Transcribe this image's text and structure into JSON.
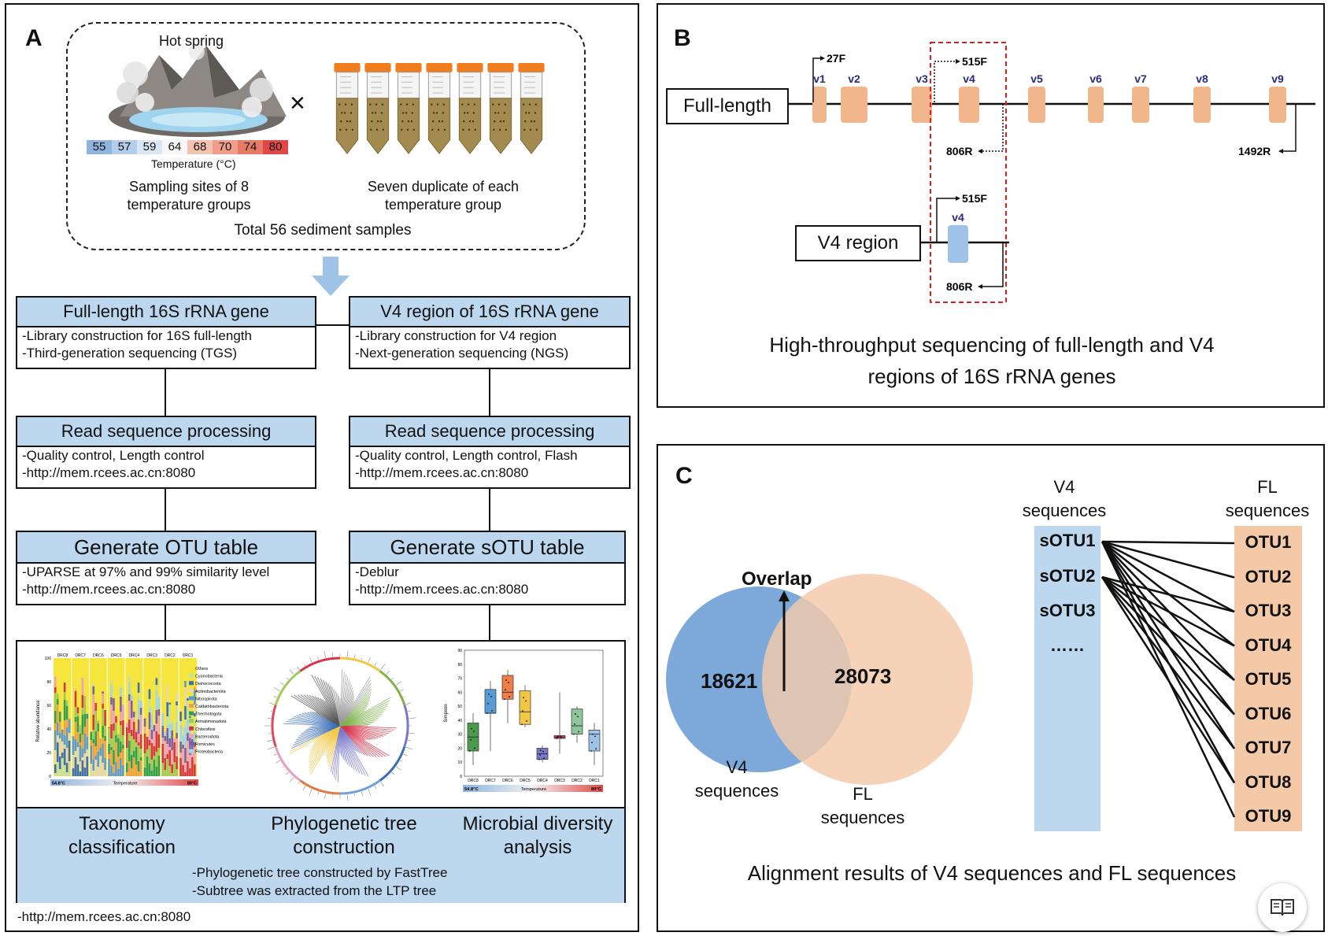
{
  "panel_a": {
    "label": "A",
    "hot_spring_label": "Hot spring",
    "times_symbol": "×",
    "temperature_scale": [
      {
        "value": "55",
        "color": "#8fb4de"
      },
      {
        "value": "57",
        "color": "#b3cdea"
      },
      {
        "value": "59",
        "color": "#dbe6f4"
      },
      {
        "value": "64",
        "color": "#f7f7f7"
      },
      {
        "value": "68",
        "color": "#f4c2b0"
      },
      {
        "value": "70",
        "color": "#ee9e8a"
      },
      {
        "value": "74",
        "color": "#e87a68"
      },
      {
        "value": "80",
        "color": "#e04848"
      }
    ],
    "temperature_caption": "Temperature (°C)",
    "sampling_sites_line1": "Sampling sites of 8",
    "sampling_sites_line2": "temperature groups",
    "duplicates_line1": "Seven duplicate of each",
    "duplicates_line2": "temperature group",
    "total_samples": "Total 56 sediment samples",
    "left_column": [
      {
        "title": "Full-length 16S rRNA gene",
        "lines": [
          "-Library construction for 16S full-length",
          "-Third-generation sequencing (TGS)"
        ]
      },
      {
        "title": "Read sequence processing",
        "lines": [
          "-Quality control, Length control",
          "-http://mem.rcees.ac.cn:8080"
        ]
      },
      {
        "title": "Generate OTU table",
        "lines": [
          "-UPARSE at 97% and 99% similarity level",
          "-http://mem.rcees.ac.cn:8080"
        ]
      }
    ],
    "right_column": [
      {
        "title": "V4 region of 16S rRNA gene",
        "lines": [
          "-Library construction for V4 region",
          "-Next-generation sequencing (NGS)"
        ]
      },
      {
        "title": "Read sequence processing",
        "lines": [
          "-Quality control, Length control, Flash",
          "-http://mem.rcees.ac.cn:8080"
        ]
      },
      {
        "title": "Generate sOTU table",
        "lines": [
          "-Deblur",
          "-http://mem.rcees.ac.cn:8080"
        ]
      }
    ],
    "analysis": {
      "taxonomy_line1": "Taxonomy",
      "taxonomy_line2": "classification",
      "phylo_line1": "Phylogenetic tree",
      "phylo_line2": "construction",
      "diversity_line1": "Microbial diversity",
      "diversity_line2": "analysis",
      "note_line1": "-Phylogenetic tree constructed by FastTree",
      "note_line2": "-Subtree was extracted from the LTP tree",
      "footer_url": "-http://mem.rcees.ac.cn:8080"
    },
    "bar_thumbnail": {
      "groups": [
        "DRC8",
        "DRC7",
        "DRC6",
        "DRC5",
        "DRC4",
        "DRC3",
        "DRC2",
        "DRC1"
      ],
      "ylabel": "Relative abundance",
      "yticks": [
        "100",
        "80",
        "60",
        "40",
        "20",
        "0"
      ],
      "legend": [
        {
          "name": "Others",
          "color": "#f5e53c"
        },
        {
          "name": "Cyanobacteria",
          "color": "#c7e1a3"
        },
        {
          "name": "Deinococcota",
          "color": "#3d6fb6"
        },
        {
          "name": "Actinobacteriota",
          "color": "#e7d7b5"
        },
        {
          "name": "Nitrospirota",
          "color": "#5b9bd5"
        },
        {
          "name": "Caldatribacteriota",
          "color": "#f0a048"
        },
        {
          "name": "Thermotogota",
          "color": "#2e9e5b"
        },
        {
          "name": "Armatimonadota",
          "color": "#9fc95e"
        },
        {
          "name": "Chloroflexi",
          "color": "#d6344a"
        },
        {
          "name": "Bacteroidota",
          "color": "#f0a0c0"
        },
        {
          "name": "Firmicutes",
          "color": "#7a5fb0"
        },
        {
          "name": "Proteobacteria",
          "color": "#9fd4ee"
        }
      ],
      "temp_low": "54.8°C",
      "temp_mid": "Temperature",
      "temp_high": "80°C"
    },
    "box_thumbnail": {
      "ylabel": "Simpson",
      "yticks": [
        "90",
        "80",
        "70",
        "60",
        "50",
        "40",
        "30",
        "20",
        "10",
        "0"
      ],
      "groups": [
        {
          "name": "DRC8",
          "q1": 18,
          "median": 28,
          "q3": 38,
          "min": 8,
          "max": 45,
          "color": "#4c9a4c"
        },
        {
          "name": "DRC7",
          "q1": 45,
          "median": 45,
          "q3": 62,
          "min": 18,
          "max": 68,
          "color": "#5b9bd5"
        },
        {
          "name": "DRC6",
          "q1": 55,
          "median": 60,
          "q3": 72,
          "min": 38,
          "max": 76,
          "color": "#ee7d4a"
        },
        {
          "name": "DRC5",
          "q1": 37,
          "median": 46,
          "q3": 61,
          "min": 35,
          "max": 65,
          "color": "#f2c744"
        },
        {
          "name": "DRC4",
          "q1": 12,
          "median": 16,
          "q3": 20,
          "min": 10,
          "max": 22,
          "color": "#7878c8"
        },
        {
          "name": "DRC3",
          "q1": 27,
          "median": 28,
          "q3": 29,
          "min": 16,
          "max": 60,
          "color": "#d94a5a"
        },
        {
          "name": "DRC2",
          "q1": 30,
          "median": 36,
          "q3": 48,
          "min": 24,
          "max": 50,
          "color": "#8fc59a"
        },
        {
          "name": "DRC1",
          "q1": 18,
          "median": 30,
          "q3": 33,
          "min": 8,
          "max": 38,
          "color": "#9fc3e6"
        }
      ],
      "temp_low": "54.8°C",
      "temp_mid": "Temperature",
      "temp_high": "80°C"
    }
  },
  "panel_b": {
    "label": "B",
    "full_length_label": "Full-length",
    "v4_region_label": "V4 region",
    "regions": [
      "v1",
      "v2",
      "v3",
      "v4",
      "v5",
      "v6",
      "v7",
      "v8",
      "v9"
    ],
    "primer_27f": "27F",
    "primer_515f": "515F",
    "primer_806r": "806R",
    "primer_1492r": "1492R",
    "v4_small": "v4",
    "caption_line1": "High-throughput sequencing of full-length and V4",
    "caption_line2": "regions of 16S rRNA genes",
    "region_color": "#f2b68c",
    "v4_color": "#9fc3e6",
    "highlight_color": "#e02020"
  },
  "panel_c": {
    "label": "C",
    "overlap_label": "Overlap",
    "v4_only_count": "18621",
    "fl_only_count": "28073",
    "v4_venn_line1": "V4",
    "v4_venn_line2": "sequences",
    "fl_venn_line1": "FL",
    "fl_venn_line2": "sequences",
    "v4_col_line1": "V4",
    "v4_col_line2": "sequences",
    "fl_col_line1": "FL",
    "fl_col_line2": "sequences",
    "sotus": [
      "sOTU1",
      "sOTU2",
      "sOTU3",
      "……"
    ],
    "otus": [
      "OTU1",
      "OTU2",
      "OTU3",
      "OTU4",
      "OTU5",
      "OTU6",
      "OTU7",
      "OTU8",
      "OTU9"
    ],
    "caption": "Alignment results of V4 sequences and FL sequences",
    "v4_color": "#6fa0d6",
    "fl_color": "#f4c9a8"
  },
  "reader_button_icon": "book-icon"
}
